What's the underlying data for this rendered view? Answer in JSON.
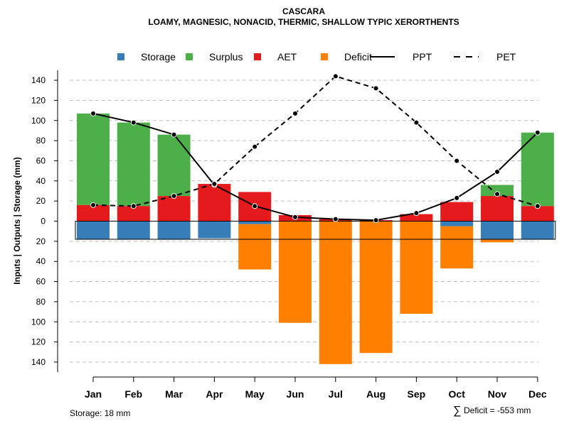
{
  "chart_data": {
    "type": "bar",
    "title": "CASCARA",
    "subtitle": "LOAMY, MAGNESIC, NONACID, THERMIC, SHALLOW TYPIC XERORTHENTS",
    "ylabel": "Inputs | Outputs | Storage    (mm)",
    "ylim": [
      -150,
      150
    ],
    "y_ticks": [
      140,
      120,
      100,
      80,
      60,
      40,
      20,
      0,
      -20,
      -40,
      -60,
      -80,
      -100,
      -120,
      -140
    ],
    "y_tick_labels": [
      "140",
      "120",
      "100",
      "80",
      "60",
      "40",
      "20",
      "0",
      "20",
      "40",
      "60",
      "80",
      "100",
      "120",
      "140"
    ],
    "categories": [
      "Jan",
      "Feb",
      "Mar",
      "Apr",
      "May",
      "Jun",
      "Jul",
      "Aug",
      "Sep",
      "Oct",
      "Nov",
      "Dec"
    ],
    "legend": [
      {
        "key": "storage",
        "label": "Storage",
        "kind": "box",
        "color": "#377EB8"
      },
      {
        "key": "surplus",
        "label": "Surplus",
        "kind": "box",
        "color": "#4DAF4A"
      },
      {
        "key": "aet",
        "label": "AET",
        "kind": "box",
        "color": "#E41A1C"
      },
      {
        "key": "deficit",
        "label": "Deficit",
        "kind": "box",
        "color": "#FF7F00"
      },
      {
        "key": "ppt",
        "label": "PPT",
        "kind": "solid",
        "color": "#000000"
      },
      {
        "key": "pet",
        "label": "PET",
        "kind": "dashed",
        "color": "#000000"
      }
    ],
    "series": [
      {
        "name": "AET",
        "color": "#E41A1C",
        "values": [
          16,
          15,
          25,
          37,
          29,
          6,
          2,
          1,
          7,
          19,
          25,
          15
        ]
      },
      {
        "name": "Surplus",
        "color": "#4DAF4A",
        "values": [
          91,
          83,
          61,
          0,
          0,
          0,
          0,
          0,
          0,
          0,
          11,
          73
        ]
      },
      {
        "name": "Storage",
        "color": "#377EB8",
        "values": [
          -18,
          -18,
          -18,
          -17,
          -3,
          0,
          0,
          0,
          0,
          -5,
          -18,
          -18
        ]
      },
      {
        "name": "Deficit",
        "color": "#FF7F00",
        "values": [
          0,
          0,
          0,
          0,
          -45,
          -101,
          -142,
          -131,
          -92,
          -42,
          -3,
          0
        ]
      },
      {
        "name": "PPT",
        "color": "#000000",
        "style": "solid",
        "values": [
          107,
          98,
          86,
          36,
          15,
          4,
          2,
          1,
          8,
          23,
          49,
          88
        ]
      },
      {
        "name": "PET",
        "color": "#000000",
        "style": "dashed",
        "values": [
          16,
          15,
          25,
          37,
          74,
          107,
          144,
          132,
          98,
          60,
          27,
          15
        ]
      }
    ],
    "storage_capacity": -18,
    "grid": true,
    "legend_position": "top"
  },
  "footer": {
    "storage_label": "Storage: 18 mm",
    "deficit_symbol": "∑",
    "deficit_label": "Deficit = -553 mm"
  }
}
